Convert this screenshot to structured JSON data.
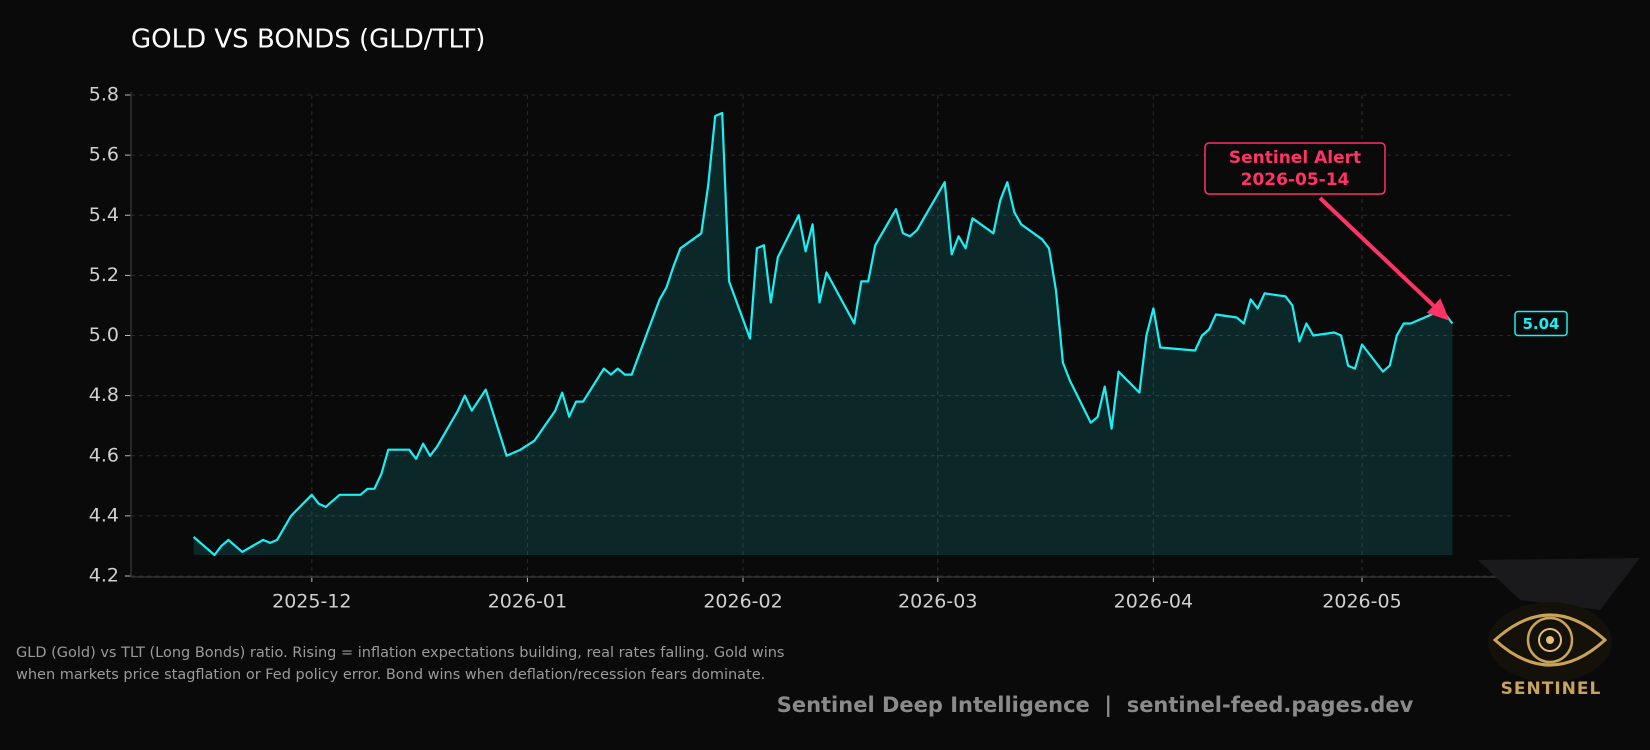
{
  "chart_data": {
    "type": "line",
    "title": "GOLD VS BONDS (GLD/TLT)",
    "x": [
      "2025-11-14",
      "2025-11-17",
      "2025-11-18",
      "2025-11-19",
      "2025-11-20",
      "2025-11-21",
      "2025-11-24",
      "2025-11-25",
      "2025-11-26",
      "2025-11-28",
      "2025-12-01",
      "2025-12-02",
      "2025-12-03",
      "2025-12-04",
      "2025-12-05",
      "2025-12-08",
      "2025-12-09",
      "2025-12-10",
      "2025-12-11",
      "2025-12-12",
      "2025-12-15",
      "2025-12-16",
      "2025-12-17",
      "2025-12-18",
      "2025-12-19",
      "2025-12-22",
      "2025-12-23",
      "2025-12-24",
      "2025-12-26",
      "2025-12-29",
      "2025-12-30",
      "2025-12-31",
      "2026-01-02",
      "2026-01-05",
      "2026-01-06",
      "2026-01-07",
      "2026-01-08",
      "2026-01-09",
      "2026-01-12",
      "2026-01-13",
      "2026-01-14",
      "2026-01-15",
      "2026-01-16",
      "2026-01-20",
      "2026-01-21",
      "2026-01-22",
      "2026-01-23",
      "2026-01-26",
      "2026-01-27",
      "2026-01-28",
      "2026-01-29",
      "2026-01-30",
      "2026-02-02",
      "2026-02-03",
      "2026-02-04",
      "2026-02-05",
      "2026-02-06",
      "2026-02-09",
      "2026-02-10",
      "2026-02-11",
      "2026-02-12",
      "2026-02-13",
      "2026-02-17",
      "2026-02-18",
      "2026-02-19",
      "2026-02-20",
      "2026-02-23",
      "2026-02-24",
      "2026-02-25",
      "2026-02-26",
      "2026-02-27",
      "2026-03-02",
      "2026-03-03",
      "2026-03-04",
      "2026-03-05",
      "2026-03-06",
      "2026-03-09",
      "2026-03-10",
      "2026-03-11",
      "2026-03-12",
      "2026-03-13",
      "2026-03-16",
      "2026-03-17",
      "2026-03-18",
      "2026-03-19",
      "2026-03-20",
      "2026-03-23",
      "2026-03-24",
      "2026-03-25",
      "2026-03-26",
      "2026-03-27",
      "2026-03-30",
      "2026-03-31",
      "2026-04-01",
      "2026-04-02",
      "2026-04-07",
      "2026-04-08",
      "2026-04-09",
      "2026-04-10",
      "2026-04-13",
      "2026-04-14",
      "2026-04-15",
      "2026-04-16",
      "2026-04-17",
      "2026-04-20",
      "2026-04-21",
      "2026-04-22",
      "2026-04-23",
      "2026-04-24",
      "2026-04-27",
      "2026-04-28",
      "2026-04-29",
      "2026-04-30",
      "2026-05-01",
      "2026-05-04",
      "2026-05-05",
      "2026-05-06",
      "2026-05-07",
      "2026-05-08",
      "2026-05-11",
      "2026-05-12",
      "2026-05-13",
      "2026-05-14"
    ],
    "series": [
      {
        "color": "#19f0f5",
        "values": [
          4.33,
          4.27,
          4.3,
          4.32,
          4.3,
          4.28,
          4.32,
          4.31,
          4.32,
          4.4,
          4.47,
          4.44,
          4.43,
          4.45,
          4.47,
          4.47,
          4.49,
          4.49,
          4.54,
          4.62,
          4.62,
          4.59,
          4.64,
          4.6,
          4.63,
          4.75,
          4.8,
          4.75,
          4.82,
          4.6,
          4.61,
          4.62,
          4.65,
          4.75,
          4.81,
          4.73,
          4.78,
          4.78,
          4.89,
          4.87,
          4.89,
          4.87,
          4.87,
          5.12,
          5.16,
          5.23,
          5.29,
          5.34,
          5.5,
          5.73,
          5.74,
          5.18,
          4.99,
          5.29,
          5.3,
          5.11,
          5.26,
          5.4,
          5.28,
          5.37,
          5.11,
          5.21,
          5.04,
          5.18,
          5.18,
          5.3,
          5.42,
          5.34,
          5.33,
          5.35,
          5.39,
          5.51,
          5.27,
          5.33,
          5.29,
          5.39,
          5.34,
          5.45,
          5.51,
          5.41,
          5.37,
          5.32,
          5.29,
          5.15,
          4.91,
          4.85,
          4.71,
          4.73,
          4.83,
          4.69,
          4.88,
          4.81,
          5.0,
          5.09,
          4.96,
          4.95,
          5.0,
          5.02,
          5.07,
          5.06,
          5.04,
          5.12,
          5.09,
          5.14,
          5.13,
          5.1,
          4.98,
          5.04,
          5.0,
          5.01,
          5.0,
          4.9,
          4.89,
          4.97,
          4.88,
          4.9,
          5.0,
          5.04,
          5.04,
          5.07,
          5.08,
          5.07,
          5.04
        ]
      }
    ],
    "xlim": [
      "2025-11-05",
      "2026-05-23"
    ],
    "xticks": [
      {
        "value": "2025-12-01",
        "label": "2025-12"
      },
      {
        "value": "2026-01-01",
        "label": "2026-01"
      },
      {
        "value": "2026-02-01",
        "label": "2026-02"
      },
      {
        "value": "2026-03-01",
        "label": "2026-03"
      },
      {
        "value": "2026-04-01",
        "label": "2026-04"
      },
      {
        "value": "2026-05-01",
        "label": "2026-05"
      }
    ],
    "ylim": [
      4.2,
      5.8
    ],
    "yticks": [
      {
        "value": 4.2,
        "label": "4.2"
      },
      4.4,
      4.6,
      4.8,
      {
        "value": 5.0,
        "label": "5.0"
      },
      5.2,
      5.4,
      5.6,
      5.8
    ],
    "grid": true,
    "annotation": {
      "text": "Sentinel Alert",
      "date": "2026-05-14"
    },
    "note": "GLD (Gold) vs TLT (Long Bonds) ratio. Rising = inflation expectations building, real rates falling. Gold wins when markets price stagflation or Fed policy error. Bond wins when deflation/recession fears dominate.",
    "footer": "Sentinel Deep Intelligence  |  sentinel-feed.pages.dev",
    "logo": "SENTINEL"
  }
}
